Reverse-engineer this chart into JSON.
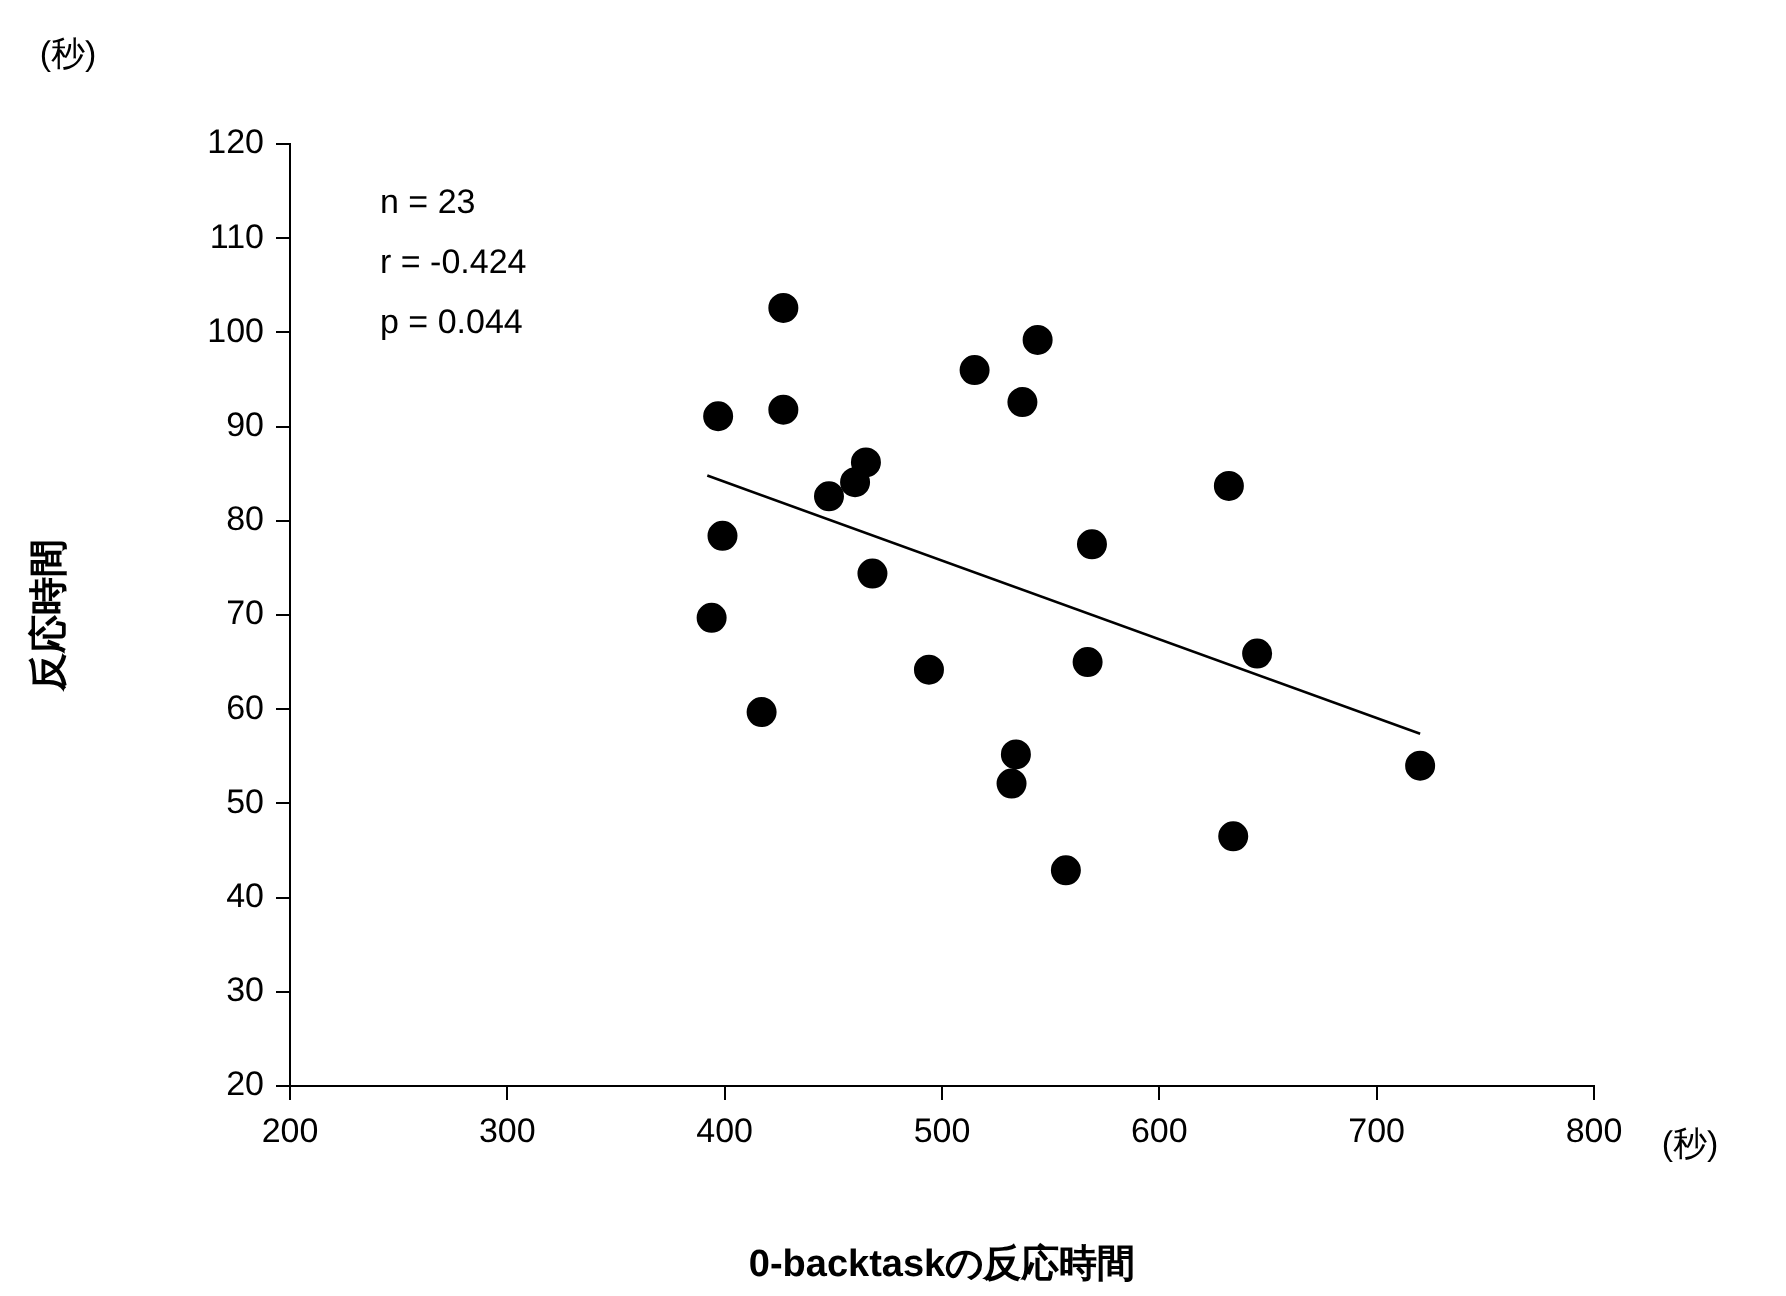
{
  "chart_data": {
    "type": "scatter",
    "xlabel": "0-backtaskの反応時間",
    "ylabel": "反応時間",
    "annotations": [
      "(秒)",
      "(秒)",
      "n = 23",
      "r = -0.424",
      "p = 0.044"
    ],
    "xlim": [
      200,
      800
    ],
    "xticks": [
      200,
      300,
      400,
      500,
      600,
      700,
      800
    ],
    "ylim": [
      20,
      120
    ],
    "yticks": [
      20,
      30,
      40,
      50,
      60,
      70,
      80,
      90,
      100,
      110,
      120
    ],
    "grid": false,
    "legend": false,
    "marker": "circle",
    "series": [
      {
        "color": "#000000",
        "x": [
          427,
          544,
          515,
          397,
          427,
          537,
          465,
          460,
          448,
          399,
          569,
          468,
          394,
          494,
          567,
          417,
          534,
          532,
          557,
          632,
          645,
          720,
          634
        ],
        "values": [
          102.6,
          99.2,
          96,
          91.1,
          91.8,
          92.6,
          86.2,
          84.1,
          82.6,
          78.4,
          77.5,
          74.4,
          69.7,
          64.2,
          65,
          59.7,
          55.2,
          52.1,
          42.9,
          83.7,
          65.9,
          54,
          46.5
        ]
      },
      {
        "type": "line",
        "color": "#000000",
        "marker": "none",
        "line_style": "solid",
        "x": [
          392,
          720
        ],
        "values": [
          84.8,
          57.4
        ]
      }
    ]
  }
}
